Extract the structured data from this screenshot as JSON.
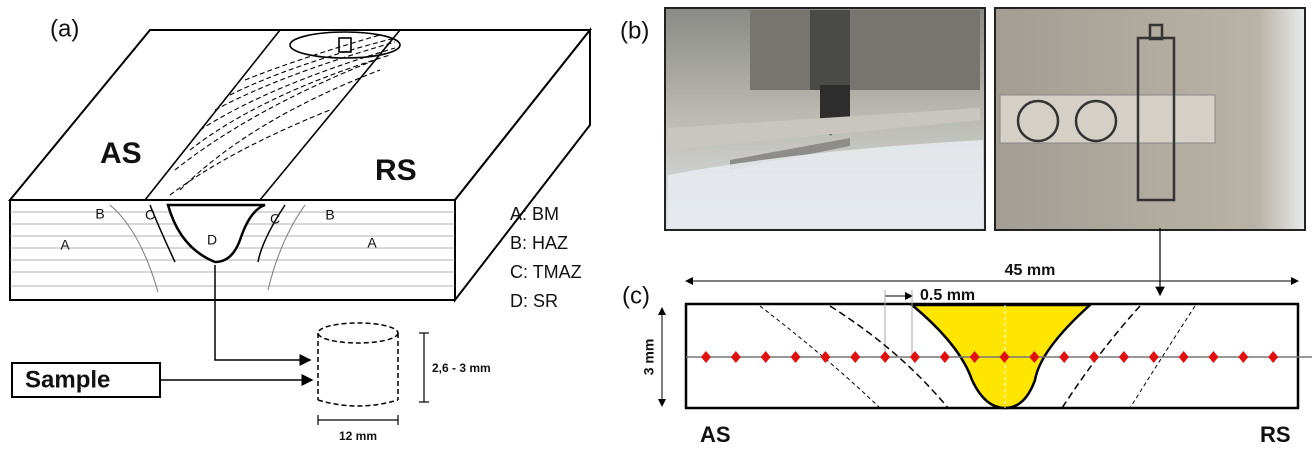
{
  "panel_a": {
    "label": "(a)",
    "advancing_side": "AS",
    "retreating_side": "RS",
    "zones": [
      "A",
      "B",
      "C",
      "D",
      "C",
      "B",
      "A"
    ],
    "legend": [
      "A: BM",
      "B: HAZ",
      "C: TMAZ",
      "D: SR"
    ],
    "sample": "Sample",
    "height": "2,6 - 3 mm",
    "diameter": "12 mm"
  },
  "panel_b": {
    "label": "(b)"
  },
  "panel_c": {
    "label": "(c)",
    "width": "45 mm",
    "spacing": "0.5 mm",
    "thickness": "3 mm",
    "left": "AS",
    "right": "RS"
  }
}
